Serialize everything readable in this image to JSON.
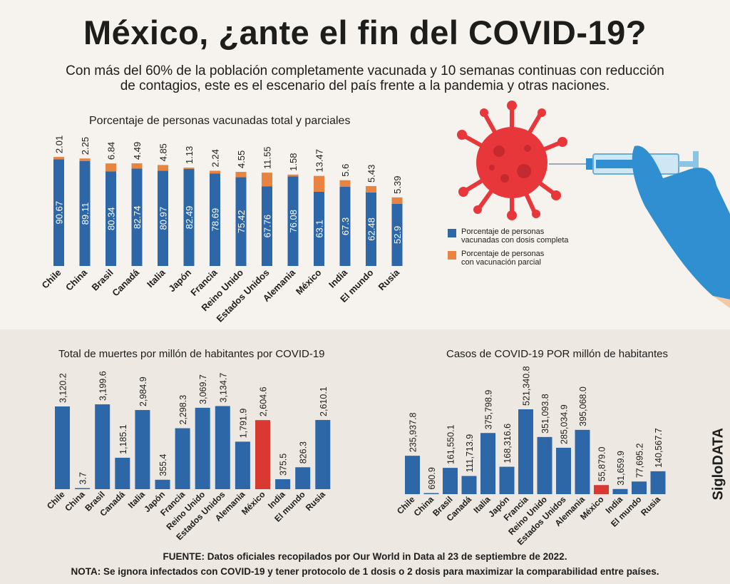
{
  "title": "México, ¿ante el fin del COVID-19?",
  "subtitle": "Con más del 60% de la población completamente vacunada y 10 semanas continuas con reducción de contagios, este es el escenario del país frente a la pandemia y otras naciones.",
  "brand": "SigloDATA",
  "footer": {
    "source": "FUENTE: Datos oficiales recopilados por Our World in Data al 23 de septiembre de 2022.",
    "note": "NOTA: Se ignora infectados con COVID-19 y tener protocolo de 1 dosis o 2 dosis para maximizar la comparabilidad entre países."
  },
  "colors": {
    "blue": "#2e67a8",
    "orange": "#e8843f",
    "red": "#d83a32"
  },
  "illustration": {
    "icons": [
      "virus-icon",
      "syringe-icon",
      "gloved-hand-icon"
    ]
  },
  "chart_data": [
    {
      "type": "bar",
      "stacked": true,
      "title": "Porcentaje de personas vacunadas total y parciales",
      "categories": [
        "Chile",
        "China",
        "Brasil",
        "Canadá",
        "Italia",
        "Japón",
        "Francia",
        "Reino Unido",
        "Estados Unidos",
        "Alemania",
        "México",
        "India",
        "El mundo",
        "Rusia"
      ],
      "series": [
        {
          "name": "Porcentaje de personas vacunadas con dosis completa",
          "color": "#2e67a8",
          "values": [
            90.67,
            89.11,
            80.34,
            82.74,
            80.97,
            82.49,
            78.69,
            75.42,
            67.76,
            76.08,
            63.1,
            67.3,
            62.48,
            52.9
          ],
          "labels": [
            "90.67",
            "89.11",
            "80.34",
            "82.74",
            "80.97",
            "82.49",
            "78.69",
            "75.42",
            "67.76",
            "76.08",
            "63.1",
            "67.3",
            "62.48",
            "52.9"
          ]
        },
        {
          "name": "Porcentaje de personas con vacunación parcial",
          "color": "#e8843f",
          "values": [
            2.01,
            2.25,
            6.84,
            4.49,
            4.85,
            1.13,
            2.24,
            4.55,
            11.55,
            1.58,
            13.47,
            5.6,
            5.43,
            5.39
          ],
          "labels": [
            "2.01",
            "2.25",
            "6.84",
            "4.49",
            "4.85",
            "1.13",
            "2.24",
            "4.55",
            "11.55",
            "1.58",
            "13.47",
            "5.6",
            "5.43",
            "5.39"
          ]
        }
      ],
      "legend": {
        "position": "right",
        "entries": [
          [
            "Porcentaje de personas",
            "vacunadas con dosis completa"
          ],
          [
            "Porcentaje de personas",
            "con vacunación parcial"
          ]
        ]
      },
      "ylim": [
        0,
        100
      ],
      "grid": false
    },
    {
      "type": "bar",
      "title": "Total de muertes por millón de habitantes por COVID-19",
      "categories": [
        "Chile",
        "China",
        "Brasil",
        "Canadá",
        "Italia",
        "Japón",
        "Francia",
        "Reino Unido",
        "Estados Unidos",
        "Alemania",
        "México",
        "India",
        "El mundo",
        "Rusia"
      ],
      "values": [
        3120.2,
        3.7,
        3199.6,
        1185.1,
        2984.9,
        355.4,
        2298.3,
        3069.7,
        3134.7,
        1791.9,
        2604.6,
        375.5,
        826.3,
        2610.1
      ],
      "labels": [
        "3,120.2",
        "3.7",
        "3,199.6",
        "1,185.1",
        "2,984.9",
        "355.4",
        "2,298.3",
        "3,069.7",
        "3,134.7",
        "1,791.9",
        "2,604.6",
        "375.5",
        "826.3",
        "2,610.1"
      ],
      "highlight": "México",
      "grid": false
    },
    {
      "type": "bar",
      "title": "Casos de COVID-19 POR millón de habitantes",
      "categories": [
        "Chile",
        "China",
        "Brasil",
        "Canadá",
        "Italia",
        "Japón",
        "Francia",
        "Reino Unido",
        "Estados Unidos",
        "Alemania",
        "México",
        "India",
        "El mundo",
        "Rusia"
      ],
      "values": [
        235937.8,
        690.9,
        161550.1,
        111713.9,
        375798.9,
        168316.6,
        521340.8,
        351093.8,
        285034.9,
        395068.0,
        55879.0,
        31659.9,
        77695.2,
        140567.7
      ],
      "labels": [
        "235,937.8",
        "690.9",
        "161,550.1",
        "111,713.9",
        "375,798.9",
        "168,316.6",
        "521,340.8",
        "351,093.8",
        "285,034.9",
        "395,068.0",
        "55,879.0",
        "31,659.9",
        "77,695.2",
        "140,567.7"
      ],
      "highlight": "México",
      "grid": false
    }
  ]
}
